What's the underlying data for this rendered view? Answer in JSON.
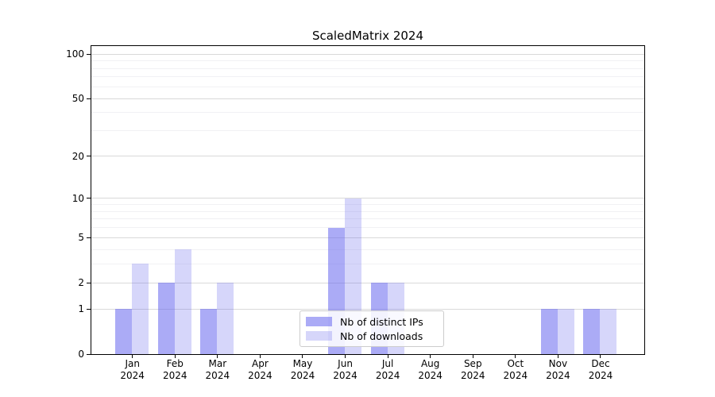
{
  "title": "ScaledMatrix 2024",
  "chart_data": {
    "type": "bar",
    "title": "ScaledMatrix 2024",
    "categories": [
      "Jan",
      "Feb",
      "Mar",
      "Apr",
      "May",
      "Jun",
      "Jul",
      "Aug",
      "Sep",
      "Oct",
      "Nov",
      "Dec"
    ],
    "x_year_suffix": "2024",
    "series": [
      {
        "name": "Nb of distinct IPs",
        "values": [
          1,
          2,
          1,
          0,
          0,
          6,
          2,
          0,
          0,
          0,
          1,
          1
        ],
        "color": "#6666ee",
        "alpha": 0.55
      },
      {
        "name": "Nb of downloads",
        "values": [
          3,
          4,
          2,
          0,
          0,
          10,
          2,
          0,
          0,
          0,
          1,
          1
        ],
        "color": "#6666ee",
        "alpha": 0.27
      }
    ],
    "xlabel": "",
    "ylabel": "",
    "y_axis": {
      "scale": "log1p",
      "y_max": 113.3,
      "ticks": [
        0,
        1,
        2,
        5,
        10,
        20,
        50,
        100
      ],
      "minor_ticks": [
        3,
        4,
        6,
        7,
        8,
        9,
        30,
        40,
        60,
        70,
        80,
        90
      ]
    },
    "grid": true,
    "legend_position": "lower center",
    "colors": {
      "major_grid": "#d9d9d9",
      "minor_grid": "#f1f1f4",
      "axis": "#000000",
      "background": "#ffffff",
      "bar_dark_visible": "#aaaaf5",
      "bar_light_visible": "#d9d9f8"
    }
  }
}
